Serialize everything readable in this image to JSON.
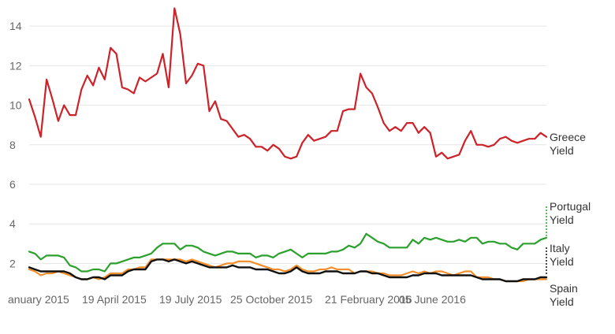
{
  "chart_data": {
    "type": "line",
    "x_ticks": [
      "anuary 2015",
      "19 April 2015",
      "19 July 2015",
      "25 October 2015",
      "21 February 2016",
      "05 June 2016"
    ],
    "y_ticks": [
      "2",
      "4",
      "6",
      "8",
      "10",
      "12",
      "14"
    ],
    "ylim": [
      1.3,
      15
    ],
    "grid": true,
    "series": [
      {
        "name": "Greece Yield",
        "label_lines": [
          "Greece",
          "Yield"
        ],
        "color": "#cc2229",
        "values": [
          10.3,
          9.4,
          8.4,
          11.3,
          10.3,
          9.2,
          10.0,
          9.5,
          9.5,
          10.8,
          11.5,
          11.0,
          11.9,
          11.3,
          12.9,
          12.6,
          10.9,
          10.8,
          10.6,
          11.4,
          11.2,
          11.4,
          11.6,
          12.6,
          10.9,
          14.9,
          13.6,
          11.1,
          11.5,
          12.1,
          12.0,
          9.7,
          10.2,
          9.3,
          9.2,
          8.8,
          8.4,
          8.5,
          8.3,
          7.9,
          7.9,
          7.7,
          8.0,
          7.8,
          7.4,
          7.3,
          7.4,
          8.1,
          8.5,
          8.2,
          8.3,
          8.4,
          8.7,
          8.7,
          9.7,
          9.8,
          9.8,
          11.6,
          10.9,
          10.6,
          9.9,
          9.1,
          8.7,
          8.9,
          8.7,
          9.1,
          9.1,
          8.6,
          8.9,
          8.6,
          7.4,
          7.6,
          7.3,
          7.4,
          7.5,
          8.2,
          8.7,
          8.0,
          8.0,
          7.9,
          8.0,
          8.3,
          8.4,
          8.2,
          8.1,
          8.2,
          8.3,
          8.3,
          8.6,
          8.4
        ]
      },
      {
        "name": "Portugal Yield",
        "label_lines": [
          "Portugal",
          "Yield"
        ],
        "color": "#2ca02c",
        "values": [
          2.6,
          2.5,
          2.2,
          2.4,
          2.4,
          2.4,
          2.3,
          1.9,
          1.8,
          1.6,
          1.6,
          1.7,
          1.7,
          1.6,
          2.0,
          2.0,
          2.1,
          2.2,
          2.3,
          2.3,
          2.4,
          2.5,
          2.8,
          3.0,
          3.0,
          3.0,
          2.7,
          2.9,
          2.9,
          2.8,
          2.6,
          2.5,
          2.4,
          2.5,
          2.6,
          2.6,
          2.5,
          2.5,
          2.5,
          2.3,
          2.4,
          2.4,
          2.3,
          2.5,
          2.6,
          2.7,
          2.5,
          2.3,
          2.5,
          2.5,
          2.5,
          2.5,
          2.6,
          2.6,
          2.7,
          2.9,
          2.8,
          3.0,
          3.5,
          3.3,
          3.1,
          3.0,
          2.8,
          2.8,
          2.8,
          2.8,
          3.2,
          3.0,
          3.3,
          3.2,
          3.3,
          3.2,
          3.1,
          3.1,
          3.2,
          3.1,
          3.3,
          3.3,
          3.0,
          3.1,
          3.1,
          3.0,
          3.0,
          2.8,
          2.7,
          3.0,
          3.0,
          3.0,
          3.2,
          3.3
        ]
      },
      {
        "name": "Italy Yield",
        "label_lines": [
          "Italy",
          "Yield"
        ],
        "color": "#f28e2b",
        "values": [
          1.7,
          1.6,
          1.4,
          1.5,
          1.5,
          1.6,
          1.5,
          1.4,
          1.3,
          1.2,
          1.2,
          1.3,
          1.2,
          1.3,
          1.5,
          1.5,
          1.5,
          1.7,
          1.7,
          1.8,
          1.8,
          2.2,
          2.2,
          2.2,
          2.2,
          2.2,
          2.2,
          2.1,
          2.2,
          2.1,
          2.0,
          1.9,
          1.8,
          1.9,
          2.0,
          2.0,
          2.1,
          2.1,
          2.1,
          2.0,
          1.9,
          1.8,
          1.7,
          1.7,
          1.6,
          1.7,
          1.9,
          1.7,
          1.6,
          1.6,
          1.7,
          1.7,
          1.8,
          1.7,
          1.7,
          1.7,
          1.5,
          1.6,
          1.6,
          1.6,
          1.5,
          1.5,
          1.4,
          1.4,
          1.4,
          1.5,
          1.6,
          1.5,
          1.6,
          1.5,
          1.6,
          1.6,
          1.5,
          1.4,
          1.5,
          1.6,
          1.6,
          1.3,
          1.3,
          1.3,
          1.2,
          1.2,
          1.1,
          1.1,
          1.1,
          1.1,
          1.2,
          1.2,
          1.2,
          1.2
        ]
      },
      {
        "name": "Spain Yield",
        "label_lines": [
          "Spain",
          "Yield"
        ],
        "color": "#111111",
        "values": [
          1.8,
          1.7,
          1.6,
          1.6,
          1.6,
          1.6,
          1.6,
          1.5,
          1.3,
          1.2,
          1.2,
          1.3,
          1.3,
          1.2,
          1.4,
          1.4,
          1.4,
          1.6,
          1.7,
          1.7,
          1.7,
          2.1,
          2.2,
          2.2,
          2.1,
          2.2,
          2.1,
          2.0,
          2.1,
          2.0,
          1.9,
          1.8,
          1.8,
          1.8,
          1.8,
          1.9,
          1.8,
          1.8,
          1.8,
          1.7,
          1.7,
          1.7,
          1.6,
          1.5,
          1.5,
          1.6,
          1.8,
          1.6,
          1.5,
          1.5,
          1.5,
          1.6,
          1.6,
          1.6,
          1.5,
          1.5,
          1.5,
          1.6,
          1.6,
          1.5,
          1.5,
          1.4,
          1.3,
          1.3,
          1.3,
          1.3,
          1.4,
          1.4,
          1.5,
          1.5,
          1.5,
          1.4,
          1.4,
          1.4,
          1.4,
          1.4,
          1.4,
          1.3,
          1.2,
          1.2,
          1.2,
          1.2,
          1.1,
          1.1,
          1.1,
          1.2,
          1.2,
          1.2,
          1.3,
          1.3
        ]
      }
    ]
  }
}
